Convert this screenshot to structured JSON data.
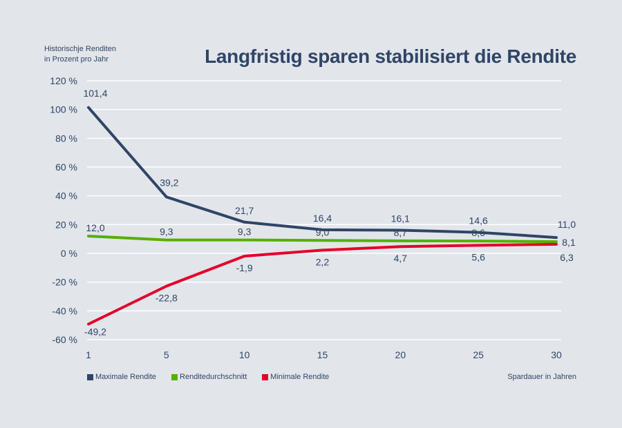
{
  "chart_data": {
    "type": "line",
    "title": "Langfristig sparen stabilisiert die Rendite",
    "ylabel": "Historischje Renditen in Prozent pro Jahr",
    "ylabel_lines": [
      "Historischje Renditen",
      "in Prozent pro Jahr"
    ],
    "xlabel": "Spardauer in Jahren",
    "x": [
      1,
      5,
      10,
      15,
      20,
      25,
      30
    ],
    "x_tick_labels": [
      "1",
      "5",
      "10",
      "15",
      "20",
      "25",
      "30"
    ],
    "ylim": [
      -60,
      120
    ],
    "y_ticks": [
      120,
      100,
      80,
      60,
      40,
      20,
      0,
      -20,
      -40,
      -60
    ],
    "y_tick_labels": [
      "120 %",
      "100 %",
      "80 %",
      "60 %",
      "40 %",
      "20 %",
      "0 %",
      "-20 %",
      "-40 %",
      "-60 %"
    ],
    "grid": true,
    "legend_position": "bottom-left",
    "series": [
      {
        "name": "Maximale Rendite",
        "color": "#2f4566",
        "values": [
          101.4,
          39.2,
          21.7,
          16.4,
          16.1,
          14.6,
          11.0
        ],
        "labels": [
          "101,4",
          "39,2",
          "21,7",
          "16,4",
          "16,1",
          "14,6",
          "11,0"
        ]
      },
      {
        "name": "Renditedurchschnitt",
        "color": "#55b000",
        "values": [
          12.0,
          9.3,
          9.3,
          9.0,
          8.7,
          8.6,
          8.1
        ],
        "labels": [
          "12,0",
          "9,3",
          "9,3",
          "9,0",
          "8,7",
          "8,6",
          "8,1"
        ]
      },
      {
        "name": "Minimale Rendite",
        "color": "#e4002b",
        "values": [
          -49.2,
          -22.8,
          -1.9,
          2.2,
          4.7,
          5.6,
          6.3
        ],
        "labels": [
          "-49,2",
          "-22,8",
          "-1,9",
          "2,2",
          "4,7",
          "5,6",
          "6,3"
        ]
      }
    ]
  }
}
